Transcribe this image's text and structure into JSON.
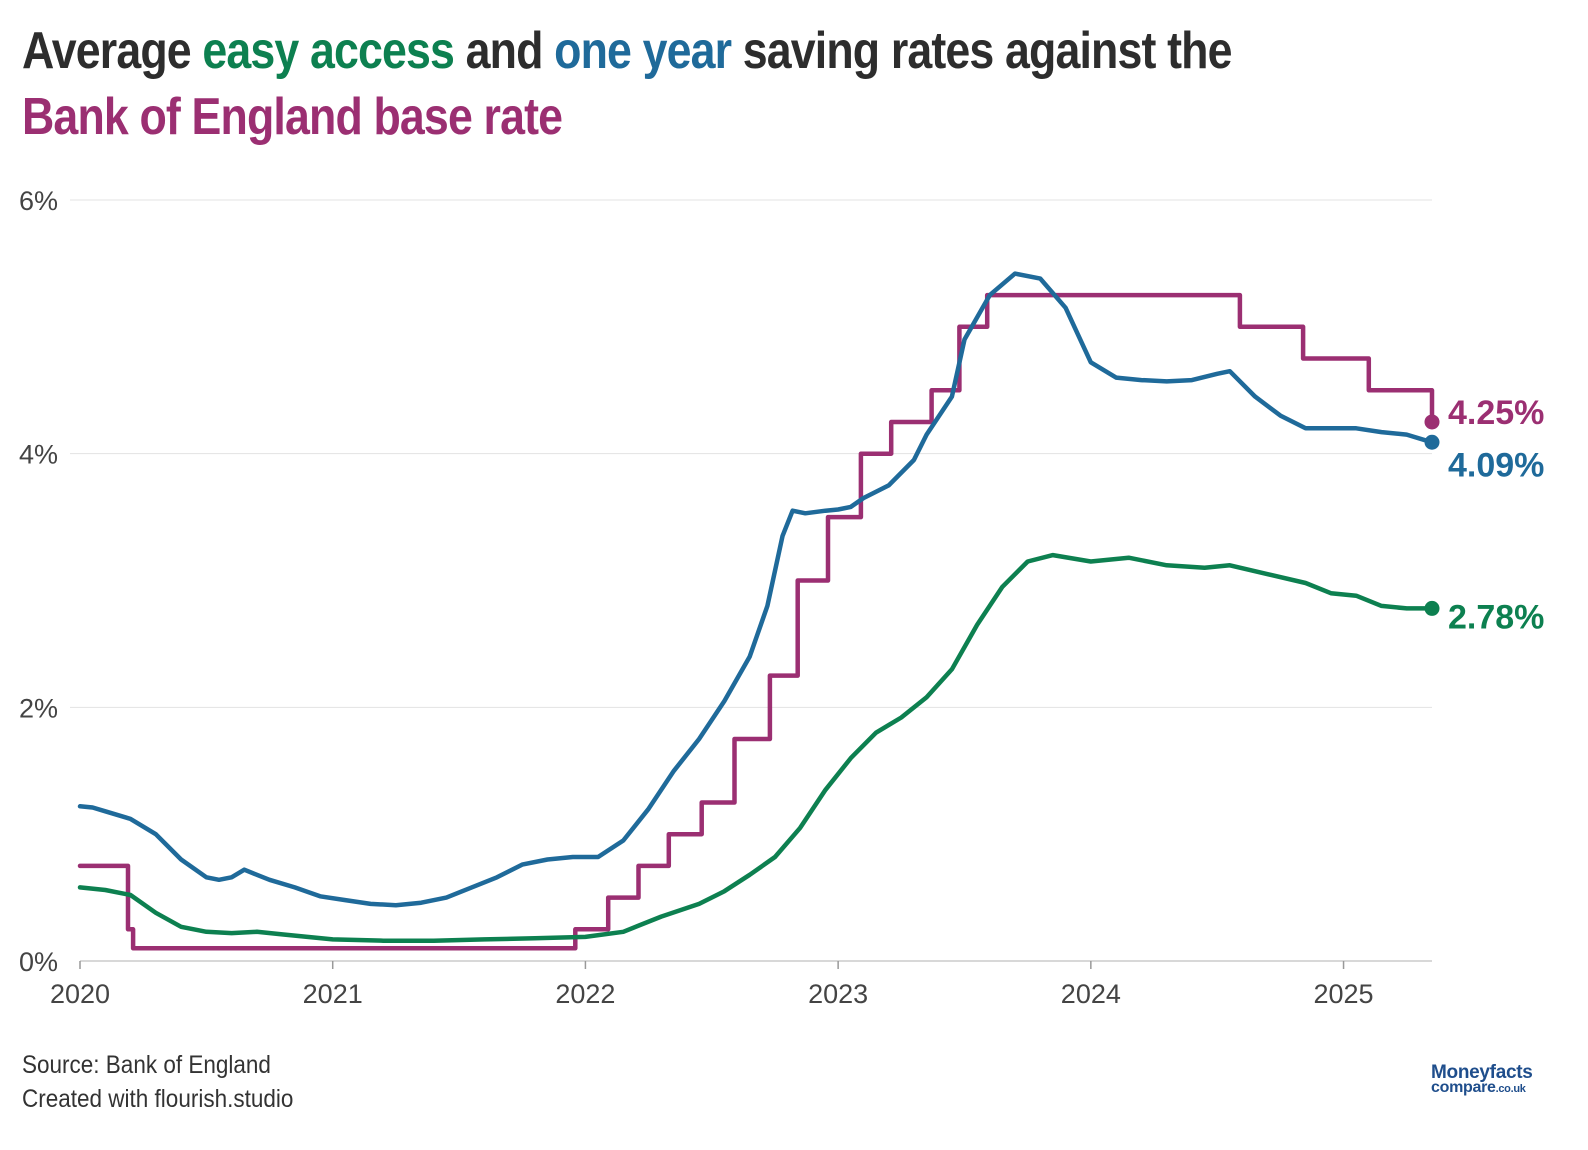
{
  "title": {
    "parts": [
      {
        "text": "Average ",
        "color": "#2d2d2d"
      },
      {
        "text": "easy access",
        "color": "#0d8050"
      },
      {
        "text": " and ",
        "color": "#2d2d2d"
      },
      {
        "text": "one year",
        "color": "#1f6a9a"
      },
      {
        "text": " saving rates against the ",
        "color": "#2d2d2d"
      },
      {
        "text": "Bank of England base rate",
        "color": "#9b2f72"
      }
    ]
  },
  "footer": {
    "source": "Source: Bank of England",
    "credit": "Created with flourish.studio"
  },
  "logo": {
    "line1": "Moneyfacts",
    "line2": "compare",
    "line2_suffix": ".co.uk"
  },
  "chart_data": {
    "type": "line",
    "title": "Average easy access and one year saving rates against the Bank of England base rate",
    "xlabel": "",
    "ylabel": "",
    "xlim": [
      2020.0,
      2025.35
    ],
    "ylim": [
      0,
      6
    ],
    "grid": true,
    "yticks": [
      0,
      2,
      4,
      6
    ],
    "ytick_labels": [
      "0%",
      "2%",
      "4%",
      "6%"
    ],
    "xticks": [
      2020,
      2021,
      2022,
      2023,
      2024,
      2025
    ],
    "xtick_labels": [
      "2020",
      "2021",
      "2022",
      "2023",
      "2024",
      "2025"
    ],
    "series": [
      {
        "name": "Bank of England base rate",
        "color": "#9b2f72",
        "step": true,
        "end_label": "4.25%",
        "x": [
          2020.0,
          2020.19,
          2020.21,
          2021.96,
          2022.09,
          2022.21,
          2022.33,
          2022.46,
          2022.59,
          2022.73,
          2022.84,
          2022.96,
          2023.09,
          2023.21,
          2023.37,
          2023.48,
          2023.59,
          2024.59,
          2024.84,
          2025.1,
          2025.35
        ],
        "values": [
          0.75,
          0.25,
          0.1,
          0.25,
          0.5,
          0.75,
          1.0,
          1.25,
          1.75,
          2.25,
          3.0,
          3.5,
          4.0,
          4.25,
          4.5,
          5.0,
          5.25,
          5.0,
          4.75,
          4.5,
          4.25
        ]
      },
      {
        "name": "One year fixed savings rate",
        "color": "#1f6a9a",
        "step": false,
        "end_label": "4.09%",
        "x": [
          2020.0,
          2020.05,
          2020.1,
          2020.2,
          2020.3,
          2020.4,
          2020.5,
          2020.55,
          2020.6,
          2020.65,
          2020.7,
          2020.75,
          2020.85,
          2020.95,
          2021.05,
          2021.15,
          2021.25,
          2021.35,
          2021.45,
          2021.55,
          2021.65,
          2021.75,
          2021.85,
          2021.95,
          2022.05,
          2022.15,
          2022.25,
          2022.35,
          2022.45,
          2022.55,
          2022.65,
          2022.72,
          2022.78,
          2022.82,
          2022.87,
          2022.95,
          2023.0,
          2023.05,
          2023.1,
          2023.2,
          2023.3,
          2023.35,
          2023.45,
          2023.5,
          2023.6,
          2023.7,
          2023.8,
          2023.9,
          2024.0,
          2024.1,
          2024.2,
          2024.3,
          2024.4,
          2024.5,
          2024.55,
          2024.65,
          2024.75,
          2024.85,
          2024.95,
          2025.05,
          2025.15,
          2025.25,
          2025.35
        ],
        "values": [
          1.22,
          1.21,
          1.18,
          1.12,
          1.0,
          0.8,
          0.66,
          0.64,
          0.66,
          0.72,
          0.68,
          0.64,
          0.58,
          0.51,
          0.48,
          0.45,
          0.44,
          0.46,
          0.5,
          0.58,
          0.66,
          0.76,
          0.8,
          0.82,
          0.82,
          0.95,
          1.2,
          1.5,
          1.75,
          2.05,
          2.4,
          2.8,
          3.35,
          3.55,
          3.53,
          3.55,
          3.56,
          3.58,
          3.65,
          3.75,
          3.95,
          4.15,
          4.45,
          4.9,
          5.25,
          5.42,
          5.38,
          5.15,
          4.72,
          4.6,
          4.58,
          4.57,
          4.58,
          4.63,
          4.65,
          4.45,
          4.3,
          4.2,
          4.2,
          4.2,
          4.17,
          4.15,
          4.09
        ]
      },
      {
        "name": "Easy access savings rate",
        "color": "#0d8050",
        "step": false,
        "end_label": "2.78%",
        "x": [
          2020.0,
          2020.1,
          2020.2,
          2020.3,
          2020.4,
          2020.5,
          2020.6,
          2020.7,
          2020.8,
          2020.9,
          2021.0,
          2021.2,
          2021.4,
          2021.6,
          2021.8,
          2022.0,
          2022.15,
          2022.3,
          2022.45,
          2022.55,
          2022.65,
          2022.75,
          2022.85,
          2022.95,
          2023.05,
          2023.15,
          2023.25,
          2023.35,
          2023.45,
          2023.55,
          2023.65,
          2023.75,
          2023.85,
          2024.0,
          2024.15,
          2024.3,
          2024.45,
          2024.55,
          2024.7,
          2024.85,
          2024.95,
          2025.05,
          2025.15,
          2025.25,
          2025.35
        ],
        "values": [
          0.58,
          0.56,
          0.52,
          0.38,
          0.27,
          0.23,
          0.22,
          0.23,
          0.21,
          0.19,
          0.17,
          0.16,
          0.16,
          0.17,
          0.18,
          0.19,
          0.23,
          0.35,
          0.45,
          0.55,
          0.68,
          0.82,
          1.05,
          1.35,
          1.6,
          1.8,
          1.92,
          2.08,
          2.3,
          2.65,
          2.95,
          3.15,
          3.2,
          3.15,
          3.18,
          3.12,
          3.1,
          3.12,
          3.05,
          2.98,
          2.9,
          2.88,
          2.8,
          2.78,
          2.78
        ]
      }
    ]
  }
}
